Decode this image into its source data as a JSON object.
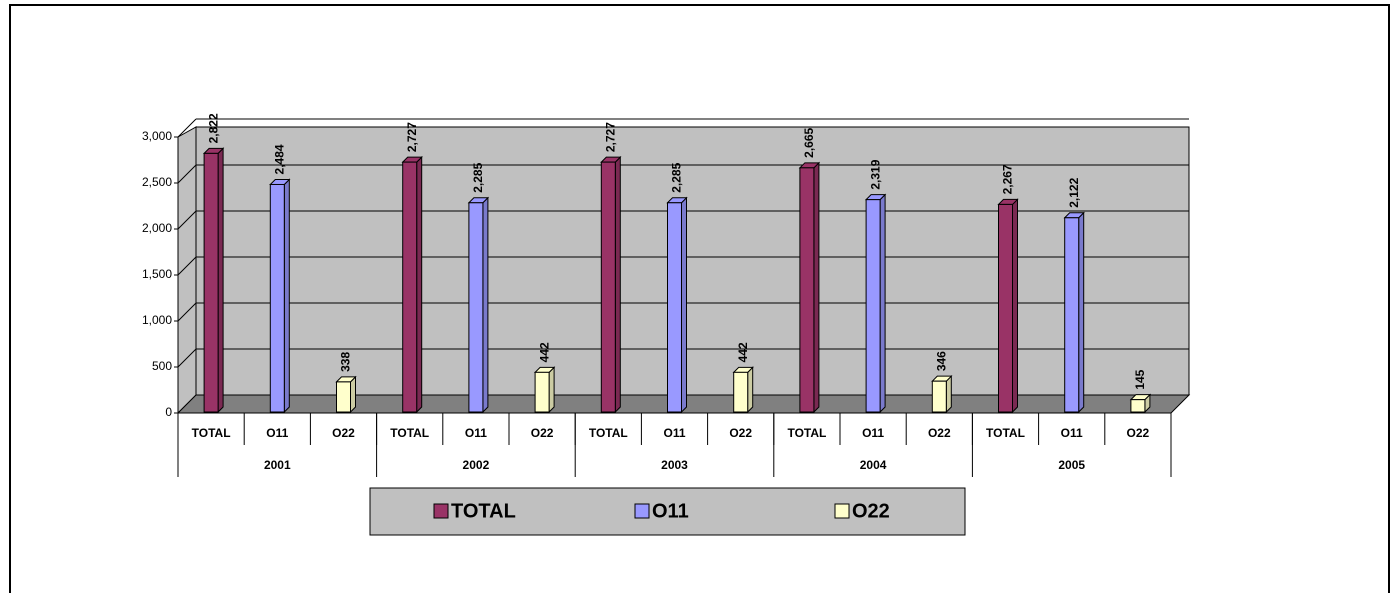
{
  "chart_data": {
    "type": "bar",
    "groups": [
      "2001",
      "2002",
      "2003",
      "2004",
      "2005"
    ],
    "categories": [
      "TOTAL",
      "O11",
      "O22",
      "TOTAL",
      "O11",
      "O22",
      "TOTAL",
      "O11",
      "O22",
      "TOTAL",
      "O11",
      "O22",
      "TOTAL",
      "O11",
      "O22"
    ],
    "series": [
      {
        "name": "TOTAL",
        "color": "#993366",
        "values": [
          2822,
          null,
          null,
          2727,
          null,
          null,
          2727,
          null,
          null,
          2665,
          null,
          null,
          2267,
          null,
          null
        ],
        "value_labels": [
          "2,822",
          null,
          null,
          "2,727",
          null,
          null,
          "2,727",
          null,
          null,
          "2,665",
          null,
          null,
          "2,267",
          null,
          null
        ]
      },
      {
        "name": "O11",
        "color": "#9999ff",
        "values": [
          null,
          2484,
          null,
          null,
          2285,
          null,
          null,
          2285,
          null,
          null,
          2319,
          null,
          null,
          2122,
          null
        ],
        "value_labels": [
          null,
          "2,484",
          null,
          null,
          "2,285",
          null,
          null,
          "2,285",
          null,
          null,
          "2,319",
          null,
          null,
          "2,122",
          null
        ]
      },
      {
        "name": "O22",
        "color": "#ffffcc",
        "values": [
          null,
          null,
          338,
          null,
          null,
          442,
          null,
          null,
          442,
          null,
          null,
          346,
          null,
          null,
          145
        ]
      }
    ],
    "ylim": [
      0,
      3000
    ],
    "yticks": [
      0,
      500,
      {
        "value": 1000,
        "label": "1,000"
      },
      {
        "value": 1500,
        "label": "1,500"
      },
      {
        "value": 2000,
        "label": "2,000"
      },
      {
        "value": 2500,
        "label": "2,500"
      },
      {
        "value": 3000,
        "label": "3,000"
      }
    ],
    "grid": true,
    "legend": "bottom"
  }
}
